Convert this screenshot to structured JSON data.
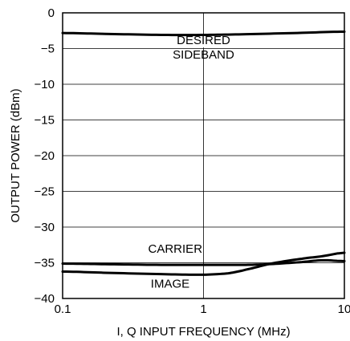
{
  "chart_data": {
    "type": "line",
    "xlabel": "I, Q INPUT FREQUENCY (MHz)",
    "ylabel": "OUTPUT POWER (dBm)",
    "x_scale": "log",
    "xlim": [
      0.1,
      10
    ],
    "ylim": [
      -40,
      0
    ],
    "x_ticks": [
      0.1,
      1,
      10
    ],
    "x_tick_labels": [
      "0.1",
      "1",
      "10"
    ],
    "y_ticks": [
      0,
      -5,
      -10,
      -15,
      -20,
      -25,
      -30,
      -35,
      -40
    ],
    "y_tick_labels": [
      "0",
      "−5",
      "−10",
      "−15",
      "−20",
      "−25",
      "−30",
      "−35",
      "−40"
    ],
    "grid": true,
    "series": [
      {
        "name": "DESIRED SIDEBAND",
        "x": [
          0.1,
          0.2,
          0.5,
          1,
          2,
          5,
          10
        ],
        "y": [
          -2.8,
          -2.95,
          -3.1,
          -3.1,
          -3.0,
          -2.8,
          -2.6
        ]
      },
      {
        "name": "CARRIER",
        "x": [
          0.1,
          0.2,
          0.5,
          1,
          2,
          3,
          5,
          7,
          10
        ],
        "y": [
          -35.1,
          -35.2,
          -35.3,
          -35.3,
          -35.3,
          -35.2,
          -34.9,
          -34.6,
          -34.8
        ]
      },
      {
        "name": "IMAGE",
        "x": [
          0.1,
          0.2,
          0.5,
          1,
          1.5,
          2,
          3,
          5,
          7,
          10
        ],
        "y": [
          -36.2,
          -36.4,
          -36.6,
          -36.7,
          -36.5,
          -36.0,
          -35.1,
          -34.4,
          -34.1,
          -33.5
        ]
      }
    ],
    "annotations": [
      {
        "lines": [
          "DESIRED",
          "SIDEBAND"
        ],
        "x": 1.0,
        "y": -4.4
      },
      {
        "lines": [
          "CARRIER"
        ],
        "x": 0.63,
        "y": -33.6
      },
      {
        "lines": [
          "IMAGE"
        ],
        "x": 0.58,
        "y": -38.5
      }
    ]
  }
}
